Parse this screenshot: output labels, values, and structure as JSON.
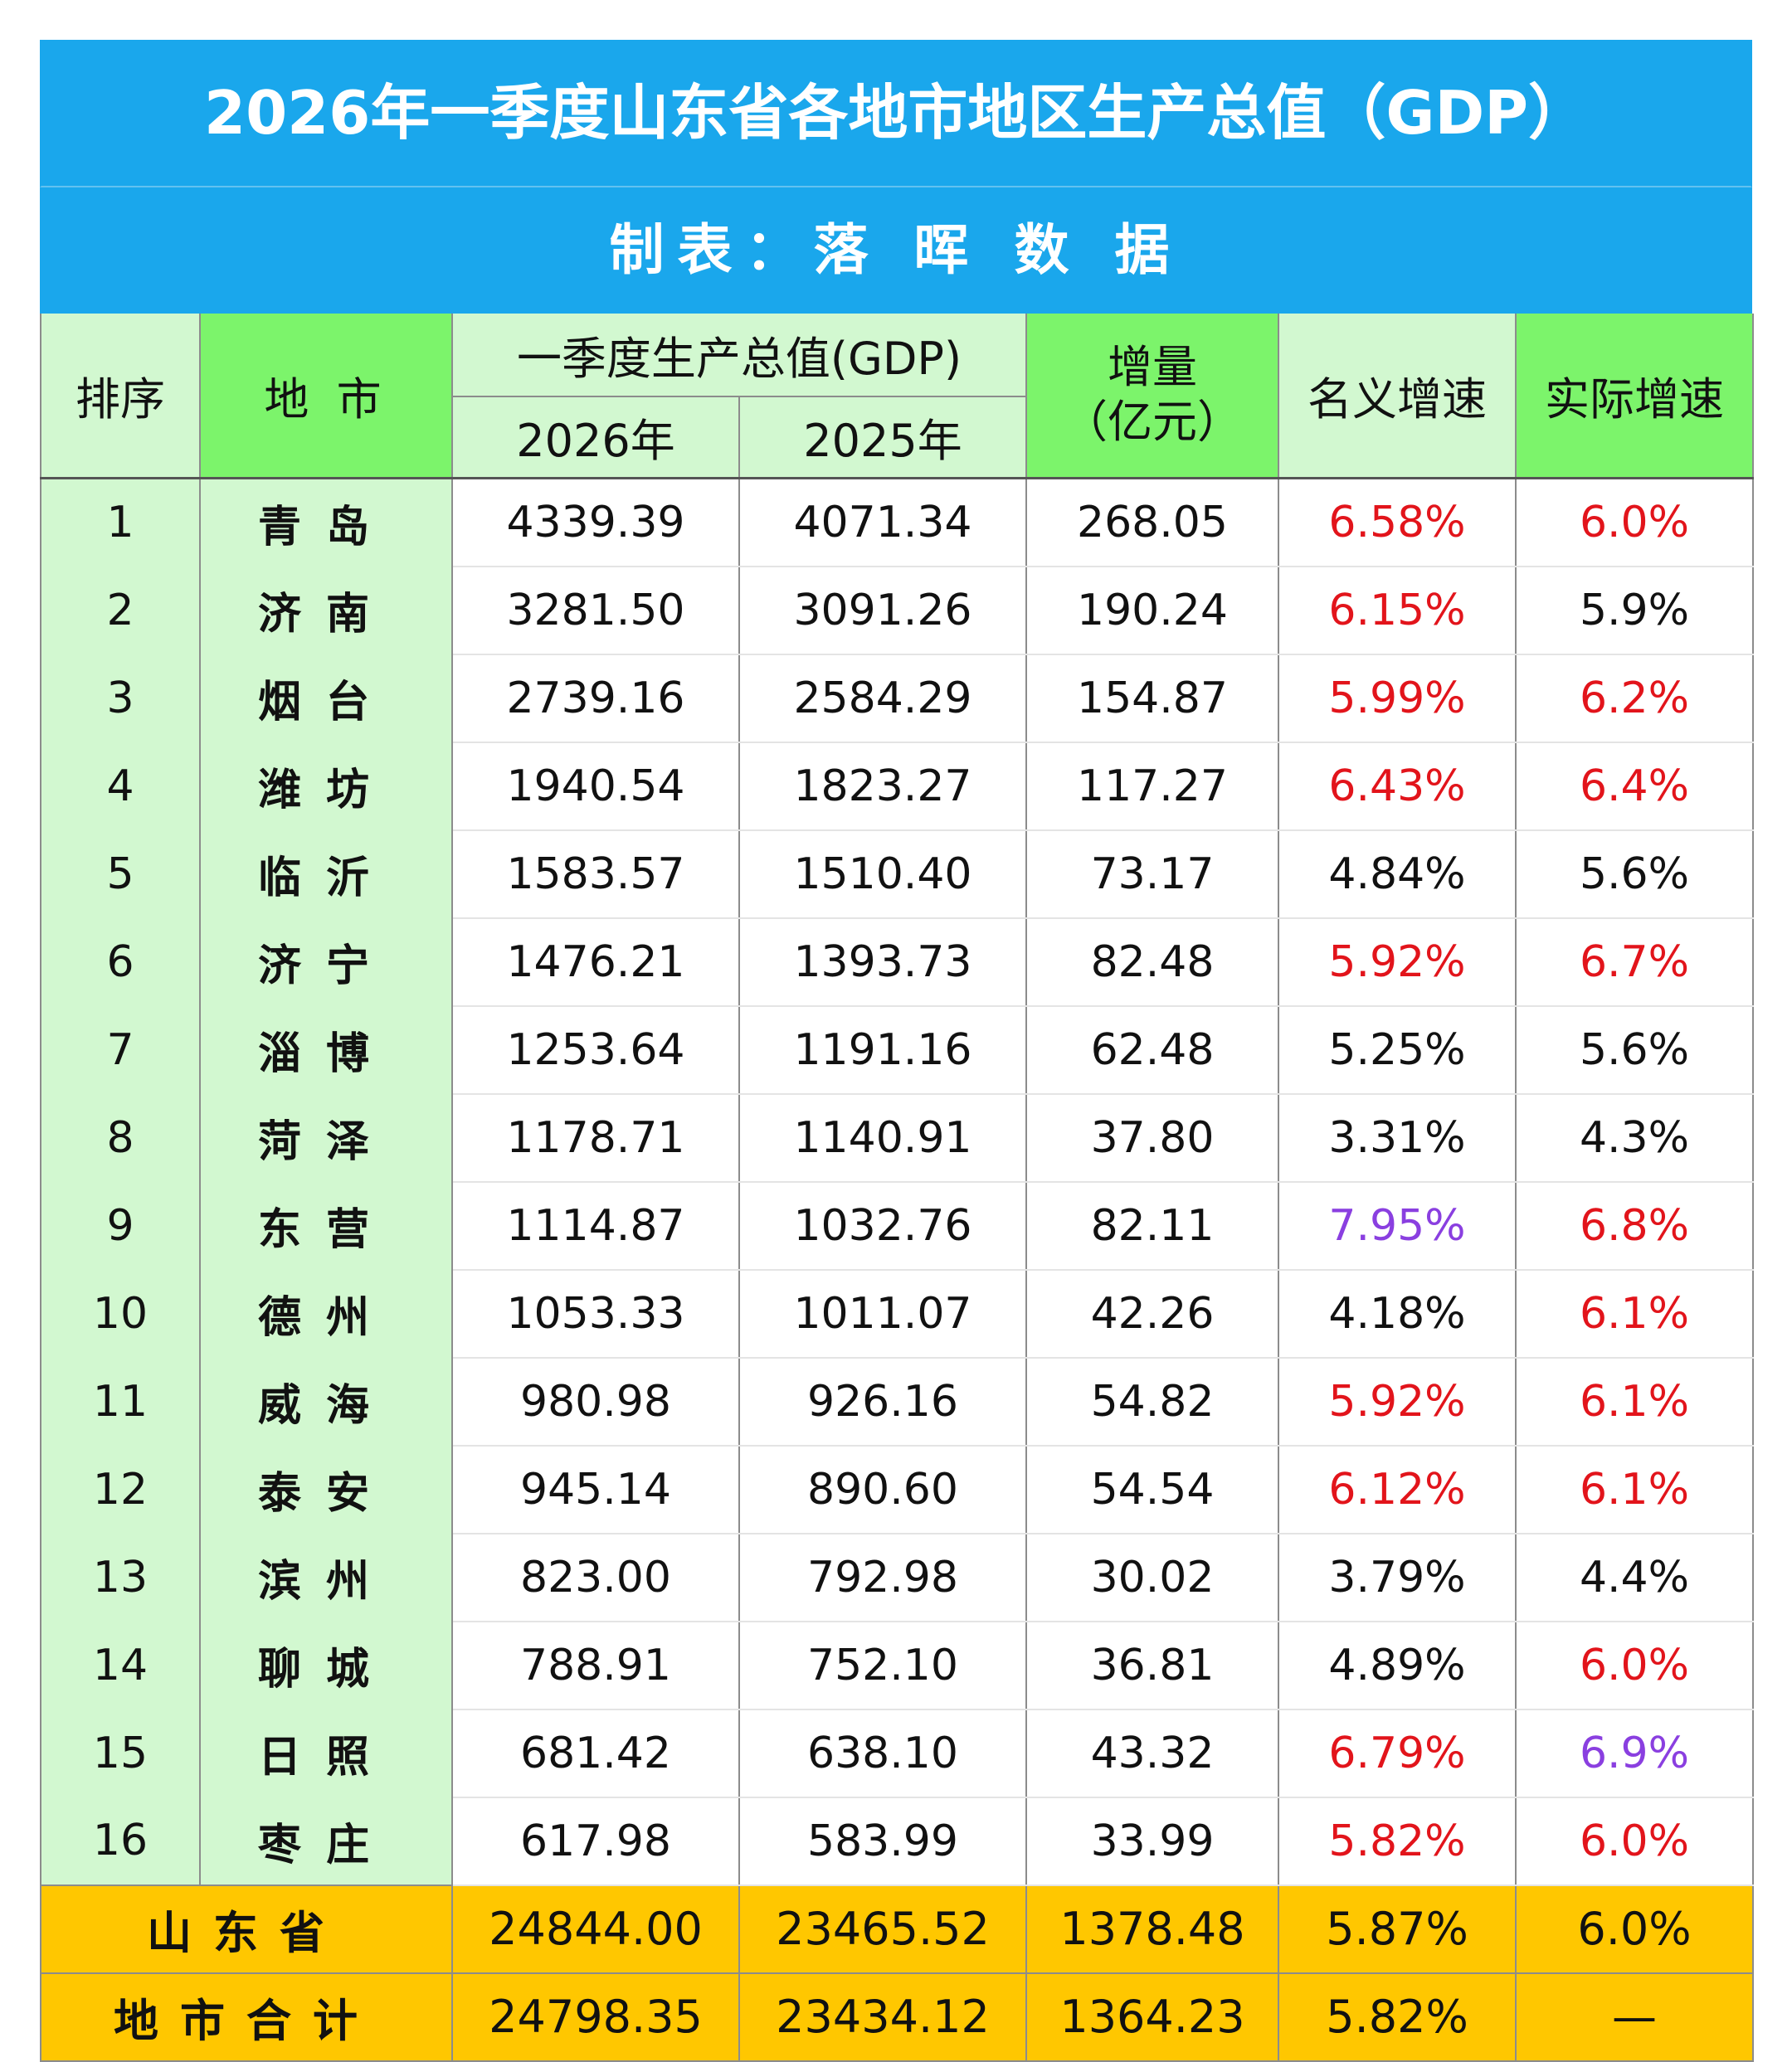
{
  "title": "2026年一季度山东省各地市地区生产总值（GDP）",
  "subtitle": "制表：落 晖 数 据",
  "headers": {
    "rank": "排序",
    "city": "地 市",
    "gdp_group": "一季度生产总值(GDP)",
    "y2026": "2026年",
    "y2025": "2025年",
    "increase_line1": "增量",
    "increase_line2": "（亿元）",
    "nominal": "名义增速",
    "real": "实际增速"
  },
  "colors": {
    "banner": "#1aa7ec",
    "header_green": "#d2f8d0",
    "header_bright_green": "#7cf46b",
    "total_gold": "#ffc700",
    "red": "#e2141b",
    "purple": "#8a3fe0"
  },
  "rows": [
    {
      "rank": "1",
      "city": "青岛",
      "gdp2026": "4339.39",
      "gdp2025": "4071.34",
      "increase": "268.05",
      "nominal": "6.58%",
      "nominal_color": "red",
      "real": "6.0%",
      "real_color": "red"
    },
    {
      "rank": "2",
      "city": "济南",
      "gdp2026": "3281.50",
      "gdp2025": "3091.26",
      "increase": "190.24",
      "nominal": "6.15%",
      "nominal_color": "red",
      "real": "5.9%",
      "real_color": "black"
    },
    {
      "rank": "3",
      "city": "烟台",
      "gdp2026": "2739.16",
      "gdp2025": "2584.29",
      "increase": "154.87",
      "nominal": "5.99%",
      "nominal_color": "red",
      "real": "6.2%",
      "real_color": "red"
    },
    {
      "rank": "4",
      "city": "潍坊",
      "gdp2026": "1940.54",
      "gdp2025": "1823.27",
      "increase": "117.27",
      "nominal": "6.43%",
      "nominal_color": "red",
      "real": "6.4%",
      "real_color": "red"
    },
    {
      "rank": "5",
      "city": "临沂",
      "gdp2026": "1583.57",
      "gdp2025": "1510.40",
      "increase": "73.17",
      "nominal": "4.84%",
      "nominal_color": "black",
      "real": "5.6%",
      "real_color": "black"
    },
    {
      "rank": "6",
      "city": "济宁",
      "gdp2026": "1476.21",
      "gdp2025": "1393.73",
      "increase": "82.48",
      "nominal": "5.92%",
      "nominal_color": "red",
      "real": "6.7%",
      "real_color": "red"
    },
    {
      "rank": "7",
      "city": "淄博",
      "gdp2026": "1253.64",
      "gdp2025": "1191.16",
      "increase": "62.48",
      "nominal": "5.25%",
      "nominal_color": "black",
      "real": "5.6%",
      "real_color": "black"
    },
    {
      "rank": "8",
      "city": "菏泽",
      "gdp2026": "1178.71",
      "gdp2025": "1140.91",
      "increase": "37.80",
      "nominal": "3.31%",
      "nominal_color": "black",
      "real": "4.3%",
      "real_color": "black"
    },
    {
      "rank": "9",
      "city": "东营",
      "gdp2026": "1114.87",
      "gdp2025": "1032.76",
      "increase": "82.11",
      "nominal": "7.95%",
      "nominal_color": "purple",
      "real": "6.8%",
      "real_color": "red"
    },
    {
      "rank": "10",
      "city": "德州",
      "gdp2026": "1053.33",
      "gdp2025": "1011.07",
      "increase": "42.26",
      "nominal": "4.18%",
      "nominal_color": "black",
      "real": "6.1%",
      "real_color": "red"
    },
    {
      "rank": "11",
      "city": "威海",
      "gdp2026": "980.98",
      "gdp2025": "926.16",
      "increase": "54.82",
      "nominal": "5.92%",
      "nominal_color": "red",
      "real": "6.1%",
      "real_color": "red"
    },
    {
      "rank": "12",
      "city": "泰安",
      "gdp2026": "945.14",
      "gdp2025": "890.60",
      "increase": "54.54",
      "nominal": "6.12%",
      "nominal_color": "red",
      "real": "6.1%",
      "real_color": "red"
    },
    {
      "rank": "13",
      "city": "滨州",
      "gdp2026": "823.00",
      "gdp2025": "792.98",
      "increase": "30.02",
      "nominal": "3.79%",
      "nominal_color": "black",
      "real": "4.4%",
      "real_color": "black"
    },
    {
      "rank": "14",
      "city": "聊城",
      "gdp2026": "788.91",
      "gdp2025": "752.10",
      "increase": "36.81",
      "nominal": "4.89%",
      "nominal_color": "black",
      "real": "6.0%",
      "real_color": "red"
    },
    {
      "rank": "15",
      "city": "日照",
      "gdp2026": "681.42",
      "gdp2025": "638.10",
      "increase": "43.32",
      "nominal": "6.79%",
      "nominal_color": "red",
      "real": "6.9%",
      "real_color": "purple"
    },
    {
      "rank": "16",
      "city": "枣庄",
      "gdp2026": "617.98",
      "gdp2025": "583.99",
      "increase": "33.99",
      "nominal": "5.82%",
      "nominal_color": "red",
      "real": "6.0%",
      "real_color": "red"
    }
  ],
  "totals": [
    {
      "label": "山东省",
      "gdp2026": "24844.00",
      "gdp2025": "23465.52",
      "increase": "1378.48",
      "nominal": "5.87%",
      "real": "6.0%"
    },
    {
      "label": "地市合计",
      "gdp2026": "24798.35",
      "gdp2025": "23434.12",
      "increase": "1364.23",
      "nominal": "5.82%",
      "real": "—"
    }
  ]
}
